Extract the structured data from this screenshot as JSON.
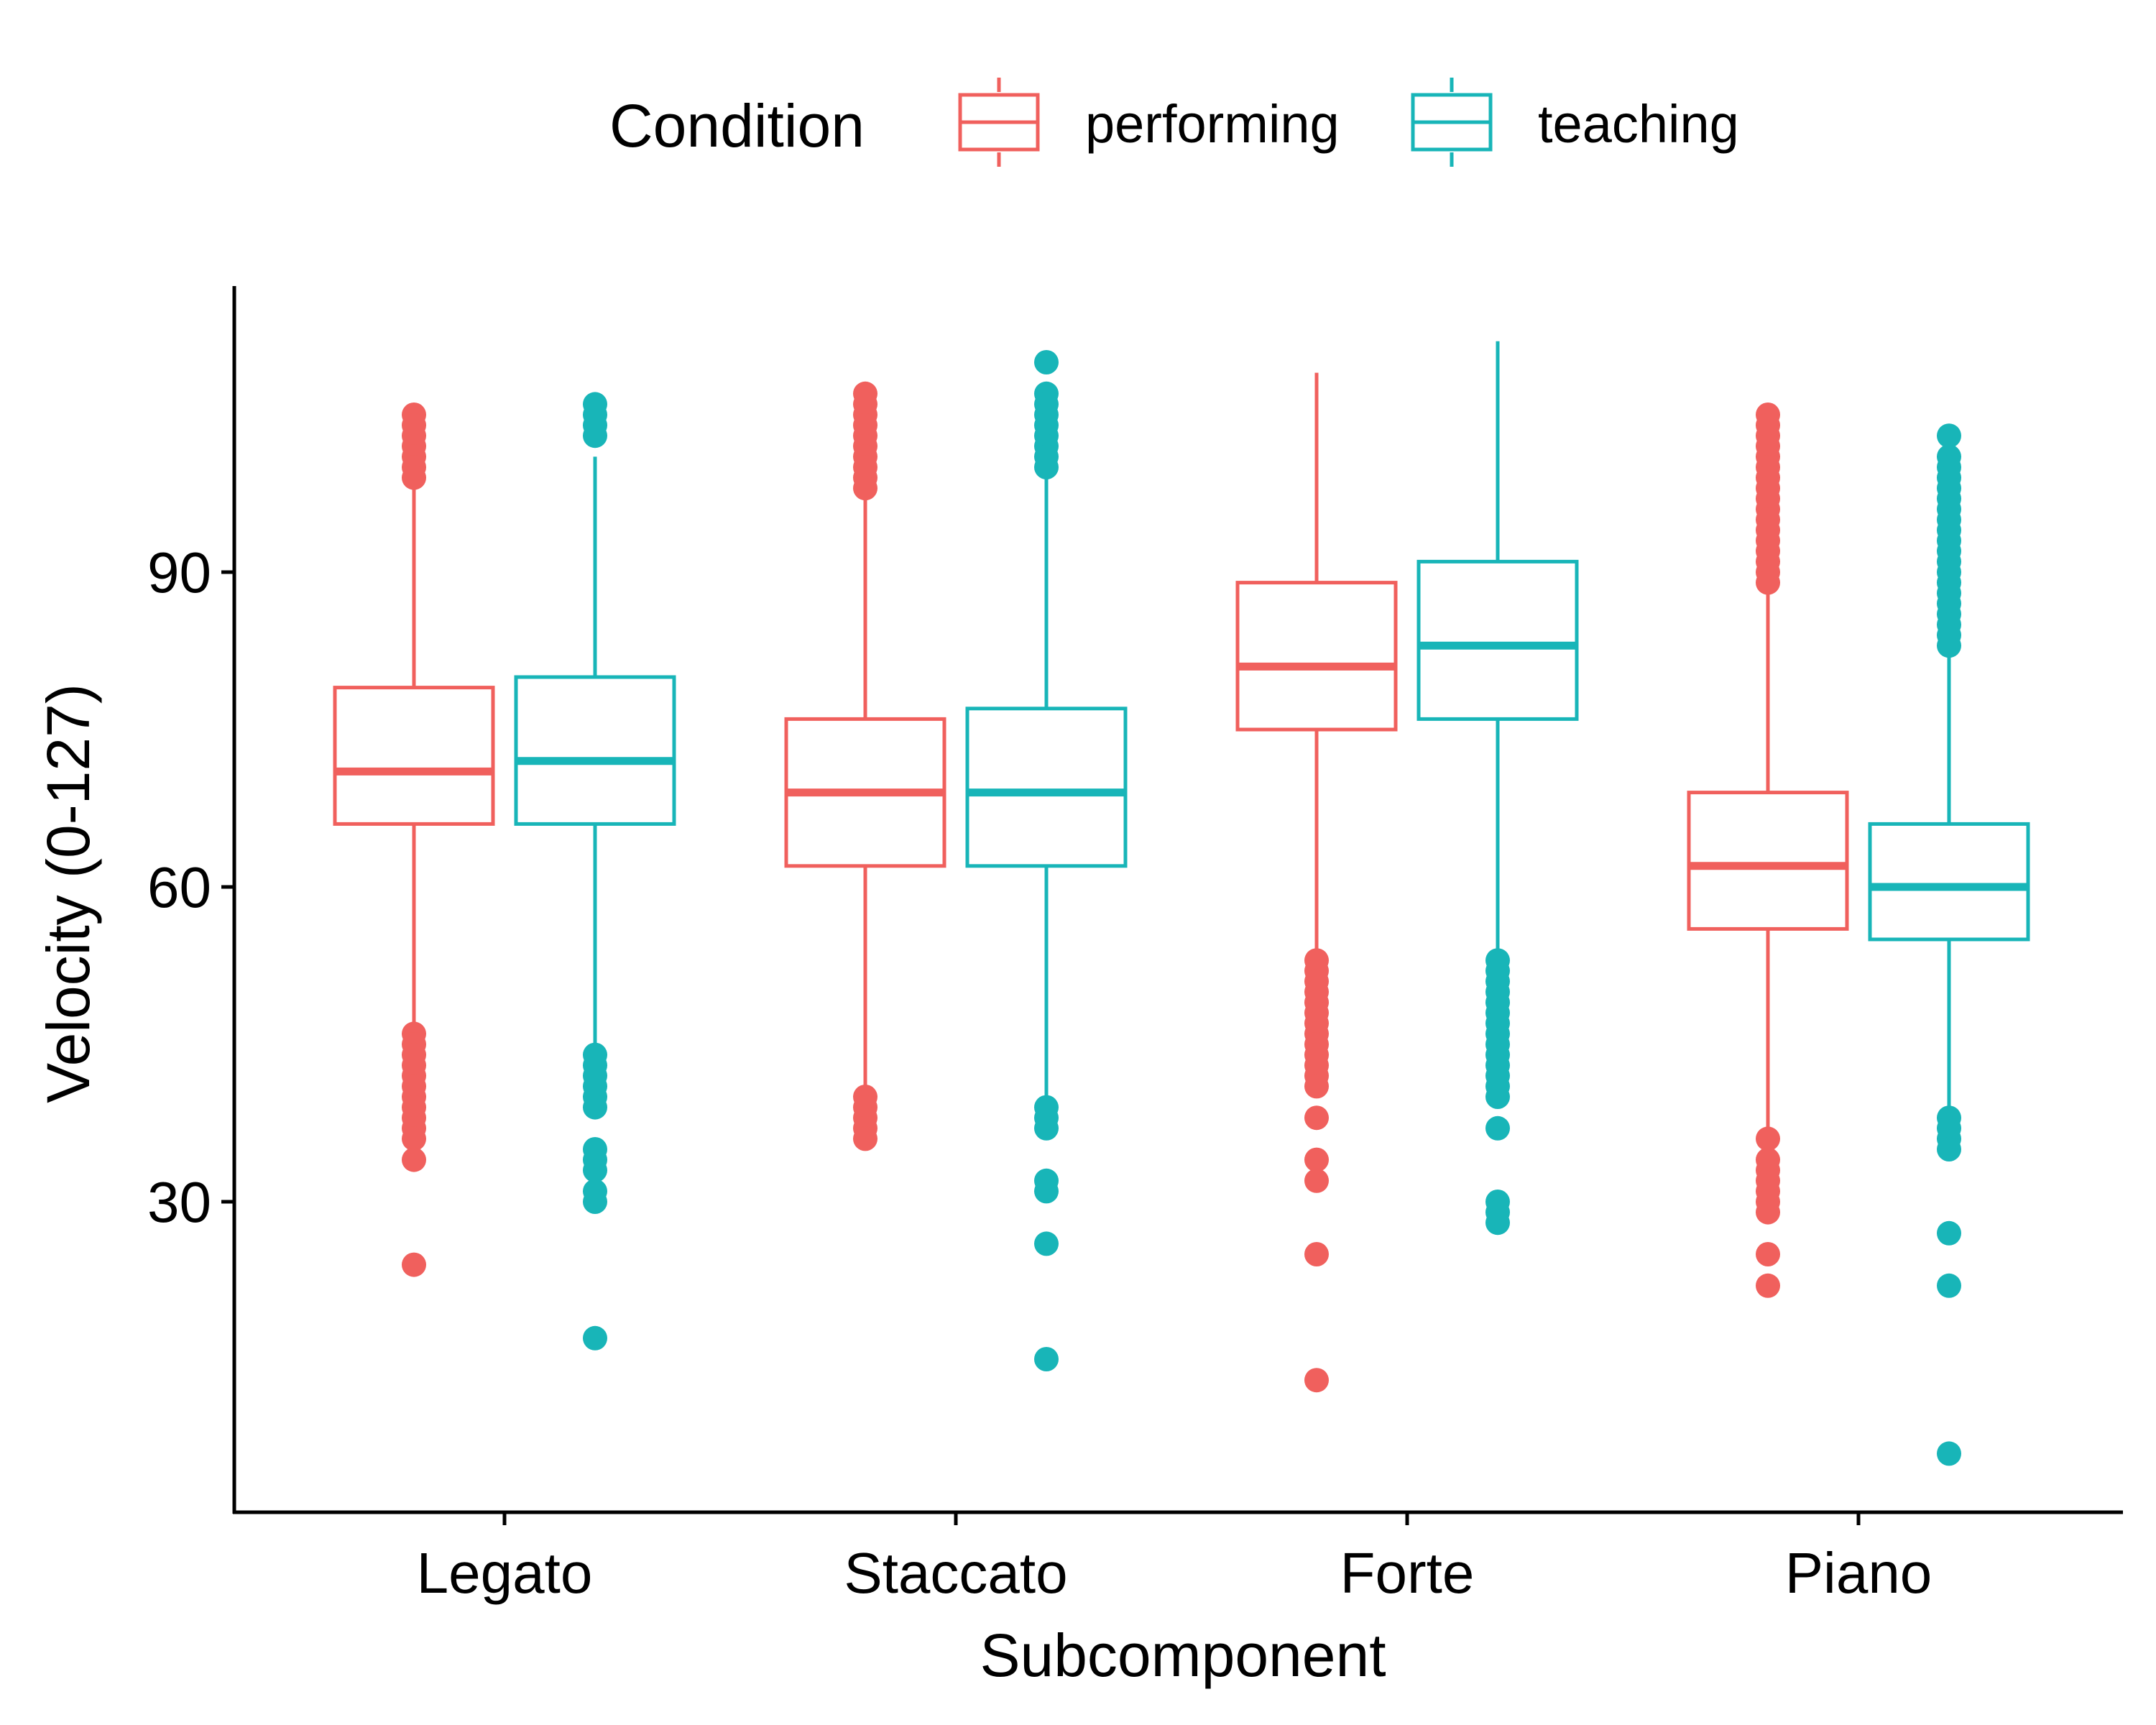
{
  "chart_data": {
    "type": "box",
    "title": "",
    "xlabel": "Subcomponent",
    "ylabel": "Velocity (0-127)",
    "ylim": [
      3,
      119
    ],
    "y_ticks": [
      30,
      60,
      90
    ],
    "grid": false,
    "legend": {
      "title": "Condition",
      "position": "top",
      "entries": [
        "performing",
        "teaching"
      ]
    },
    "colors": {
      "performing": "#F0605D",
      "teaching": "#18B5B8"
    },
    "categories": [
      "Legato",
      "Staccato",
      "Forte",
      "Piano"
    ],
    "series": [
      {
        "name": "performing",
        "boxes": [
          {
            "category": "Legato",
            "min": 46.5,
            "q1": 66,
            "median": 71,
            "q3": 79,
            "max": 98.5,
            "outliers": [
              105,
              104,
              103,
              102,
              101,
              100,
              99,
              46,
              45,
              44,
              43,
              42,
              41,
              40,
              39,
              38,
              37,
              36,
              34,
              24
            ]
          },
          {
            "category": "Staccato",
            "min": 40.5,
            "q1": 62,
            "median": 69,
            "q3": 76,
            "max": 97.5,
            "outliers": [
              107,
              106,
              105,
              104,
              103,
              102,
              101,
              100,
              99,
              98,
              40,
              39,
              38,
              37,
              36
            ]
          },
          {
            "category": "Forte",
            "min": 53,
            "q1": 75,
            "median": 81,
            "q3": 89,
            "max": 109,
            "outliers": [
              53,
              52,
              51,
              50,
              49,
              48,
              47,
              46,
              45,
              44,
              43,
              42,
              41,
              38,
              34,
              32,
              25,
              13
            ]
          },
          {
            "category": "Piano",
            "min": 36.5,
            "q1": 56,
            "median": 62,
            "q3": 69,
            "max": 89,
            "outliers": [
              105,
              104,
              103,
              102,
              101,
              100,
              99,
              98,
              97,
              96,
              95,
              94,
              93,
              92,
              91,
              90,
              89,
              36,
              34,
              33,
              32,
              31,
              30,
              29,
              25,
              22
            ]
          }
        ]
      },
      {
        "name": "teaching",
        "boxes": [
          {
            "category": "Legato",
            "min": 44.5,
            "q1": 66,
            "median": 72,
            "q3": 80,
            "max": 101,
            "outliers": [
              106,
              105,
              104,
              103,
              44,
              43,
              42,
              41,
              40,
              39,
              35,
              34,
              33,
              31,
              30,
              17
            ]
          },
          {
            "category": "Staccato",
            "min": 39.5,
            "q1": 62,
            "median": 69,
            "q3": 77,
            "max": 100,
            "outliers": [
              110,
              107,
              106,
              105,
              104,
              103,
              102,
              101,
              100,
              39,
              38,
              37,
              32,
              31,
              26,
              15
            ]
          },
          {
            "category": "Forte",
            "min": 53,
            "q1": 76,
            "median": 83,
            "q3": 91,
            "max": 112,
            "outliers": [
              53,
              52,
              51,
              50,
              49,
              48,
              47,
              46,
              45,
              44,
              43,
              42,
              41,
              40,
              37,
              30,
              29,
              28
            ]
          },
          {
            "category": "Piano",
            "min": 38.5,
            "q1": 55,
            "median": 60,
            "q3": 66,
            "max": 83,
            "outliers": [
              103,
              101,
              100,
              99,
              98,
              97,
              96,
              95,
              94,
              93,
              92,
              91,
              90,
              89,
              88,
              87,
              86,
              85,
              84,
              83,
              38,
              37,
              36,
              35,
              27,
              22,
              6
            ]
          }
        ]
      }
    ]
  }
}
